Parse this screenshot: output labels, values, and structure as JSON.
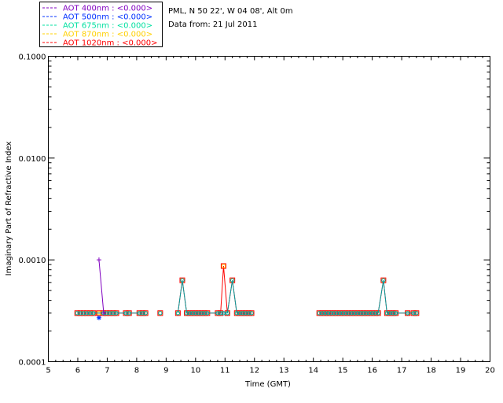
{
  "info": {
    "location": "PML, N 50 22', W 04 08', Alt 0m",
    "date": "Data from: 21 Jul 2011"
  },
  "chart_data": {
    "type": "line",
    "title": "",
    "xlabel": "Time (GMT)",
    "ylabel": "Imaginary Part of Refractive Index",
    "xlim": [
      5,
      20
    ],
    "ylim": [
      0.0001,
      0.1
    ],
    "yscale": "log",
    "xticks": [
      "5",
      "6",
      "7",
      "8",
      "9",
      "10",
      "11",
      "12",
      "13",
      "14",
      "15",
      "16",
      "17",
      "18",
      "19",
      "20"
    ],
    "yticks": [
      {
        "value": 0.0001,
        "label": "0.0001"
      },
      {
        "value": 0.001,
        "label": "0.0010"
      },
      {
        "value": 0.01,
        "label": "0.0100"
      },
      {
        "value": 0.1,
        "label": "0.1000"
      }
    ],
    "legend": [
      {
        "name": "AOT  400nm : <0.000>",
        "color": "#8000c0"
      },
      {
        "name": "AOT  500nm : <0.000>",
        "color": "#0030ff"
      },
      {
        "name": "AOT  675nm : <0.000>",
        "color": "#00e0a0"
      },
      {
        "name": "AOT  870nm : <0.000>",
        "color": "#ffd000"
      },
      {
        "name": "AOT 1020nm : <0.000>",
        "color": "#ff0000"
      }
    ],
    "series": [
      {
        "name": "400nm",
        "color": "#8000c0",
        "marker": "plus",
        "x": [
          6.72,
          6.88
        ],
        "y": [
          0.001,
          0.0003
        ]
      },
      {
        "name": "500nm",
        "color": "#0030ff",
        "marker": "star",
        "x": [
          6.72
        ],
        "y": [
          0.00027
        ]
      },
      {
        "name": "675nm",
        "color": "#00a0a0",
        "marker": "circle",
        "x": [
          5.98,
          6.09,
          6.2,
          6.31,
          6.42,
          6.53,
          6.87,
          6.98,
          7.09,
          7.2,
          7.31,
          7.63,
          7.74,
          8.09,
          8.2,
          8.3,
          8.8,
          9.4,
          9.55,
          9.7,
          9.8,
          9.9,
          10.0,
          10.1,
          10.2,
          10.3,
          10.4,
          10.75,
          10.85,
          10.95,
          11.08,
          11.25,
          11.4,
          11.5,
          11.6,
          11.7,
          11.8,
          11.9,
          14.2,
          14.3,
          14.4,
          14.5,
          14.6,
          14.7,
          14.8,
          14.9,
          15.0,
          15.1,
          15.2,
          15.3,
          15.4,
          15.5,
          15.6,
          15.7,
          15.8,
          15.9,
          16.0,
          16.1,
          16.2,
          16.38,
          16.5,
          16.6,
          16.7,
          16.8,
          17.2,
          17.4,
          17.5
        ],
        "y": [
          0.0003,
          0.0003,
          0.0003,
          0.0003,
          0.0003,
          0.0003,
          0.0003,
          0.0003,
          0.0003,
          0.0003,
          0.0003,
          0.0003,
          0.0003,
          0.0003,
          0.0003,
          0.0003,
          0.0003,
          0.0003,
          0.00063,
          0.0003,
          0.0003,
          0.0003,
          0.0003,
          0.0003,
          0.0003,
          0.0003,
          0.0003,
          0.0003,
          0.0003,
          0.0003,
          0.0003,
          0.00063,
          0.0003,
          0.0003,
          0.0003,
          0.0003,
          0.0003,
          0.0003,
          0.0003,
          0.0003,
          0.0003,
          0.0003,
          0.0003,
          0.0003,
          0.0003,
          0.0003,
          0.0003,
          0.0003,
          0.0003,
          0.0003,
          0.0003,
          0.0003,
          0.0003,
          0.0003,
          0.0003,
          0.0003,
          0.0003,
          0.0003,
          0.0003,
          0.00063,
          0.0003,
          0.0003,
          0.0003,
          0.0003,
          0.0003,
          0.0003,
          0.0003
        ]
      },
      {
        "name": "1020nm",
        "color": "#ff0000",
        "marker": "square",
        "x": [
          5.98,
          6.09,
          6.2,
          6.31,
          6.42,
          6.53,
          6.72,
          6.87,
          6.98,
          7.09,
          7.2,
          7.31,
          7.63,
          7.74,
          8.09,
          8.2,
          8.3,
          8.8,
          9.4,
          9.55,
          9.7,
          9.8,
          9.9,
          10.0,
          10.1,
          10.2,
          10.3,
          10.4,
          10.75,
          10.85,
          10.95,
          11.08,
          11.25,
          11.4,
          11.5,
          11.6,
          11.7,
          11.8,
          11.9,
          14.2,
          14.3,
          14.4,
          14.5,
          14.6,
          14.7,
          14.8,
          14.9,
          15.0,
          15.1,
          15.2,
          15.3,
          15.4,
          15.5,
          15.6,
          15.7,
          15.8,
          15.9,
          16.0,
          16.1,
          16.2,
          16.38,
          16.5,
          16.6,
          16.7,
          16.8,
          17.2,
          17.4,
          17.5
        ],
        "y": [
          0.0003,
          0.0003,
          0.0003,
          0.0003,
          0.0003,
          0.0003,
          0.0003,
          0.0003,
          0.0003,
          0.0003,
          0.0003,
          0.0003,
          0.0003,
          0.0003,
          0.0003,
          0.0003,
          0.0003,
          0.0003,
          0.0003,
          0.00063,
          0.0003,
          0.0003,
          0.0003,
          0.0003,
          0.0003,
          0.0003,
          0.0003,
          0.0003,
          0.0003,
          0.0003,
          0.00087,
          0.0003,
          0.00063,
          0.0003,
          0.0003,
          0.0003,
          0.0003,
          0.0003,
          0.0003,
          0.0003,
          0.0003,
          0.0003,
          0.0003,
          0.0003,
          0.0003,
          0.0003,
          0.0003,
          0.0003,
          0.0003,
          0.0003,
          0.0003,
          0.0003,
          0.0003,
          0.0003,
          0.0003,
          0.0003,
          0.0003,
          0.0003,
          0.0003,
          0.0003,
          0.00063,
          0.0003,
          0.0003,
          0.0003,
          0.0003,
          0.0003,
          0.0003,
          0.0003
        ],
        "breaks_before": [
          12.5,
          14.0
        ]
      }
    ]
  }
}
